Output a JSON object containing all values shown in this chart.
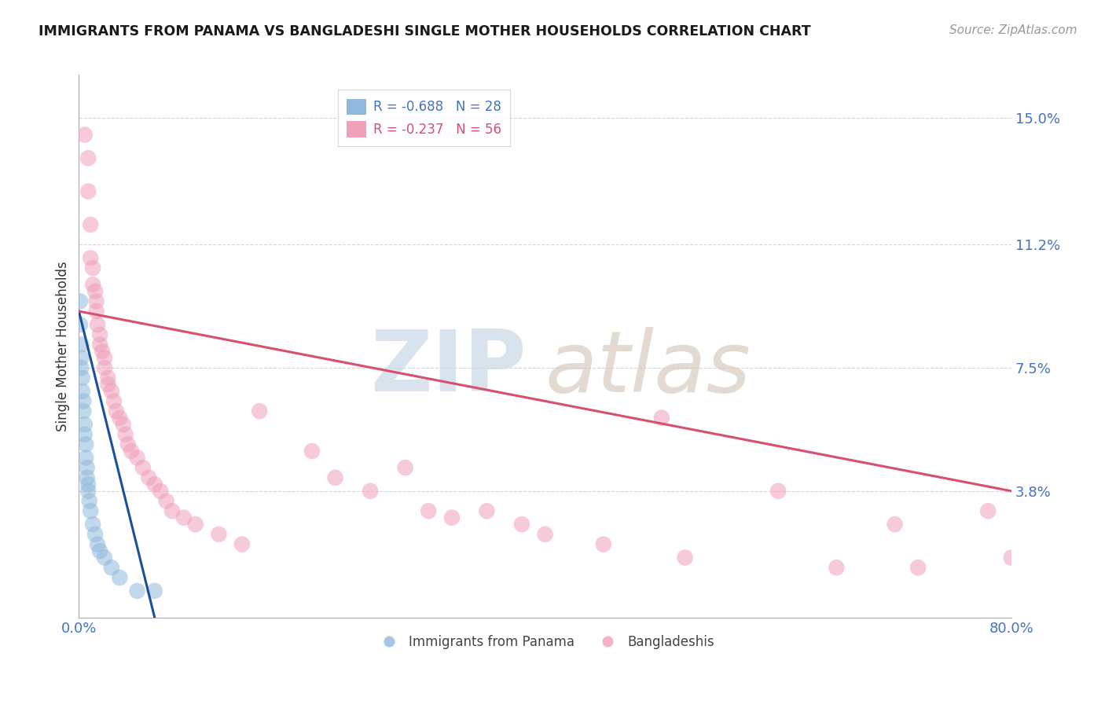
{
  "title": "IMMIGRANTS FROM PANAMA VS BANGLADESHI SINGLE MOTHER HOUSEHOLDS CORRELATION CHART",
  "source": "Source: ZipAtlas.com",
  "ylabel": "Single Mother Households",
  "ytick_labels": [
    "3.8%",
    "7.5%",
    "11.2%",
    "15.0%"
  ],
  "ytick_values": [
    0.038,
    0.075,
    0.112,
    0.15
  ],
  "xlim": [
    0.0,
    0.8
  ],
  "ylim": [
    0.0,
    0.163
  ],
  "legend_entries": [
    {
      "label": "R = -0.688   N = 28",
      "color": "#a8c8e8"
    },
    {
      "label": "R = -0.237   N = 56",
      "color": "#f4a0b8"
    }
  ],
  "legend_bottom": [
    "Immigrants from Panama",
    "Bangladeshis"
  ],
  "blue_color": "#90b8dc",
  "pink_color": "#f0a0b8",
  "blue_line_color": "#1a4f9c",
  "pink_line_color": "#d85070",
  "panama_points": [
    [
      0.001,
      0.095
    ],
    [
      0.001,
      0.088
    ],
    [
      0.002,
      0.082
    ],
    [
      0.002,
      0.078
    ],
    [
      0.002,
      0.075
    ],
    [
      0.003,
      0.072
    ],
    [
      0.003,
      0.068
    ],
    [
      0.004,
      0.065
    ],
    [
      0.004,
      0.062
    ],
    [
      0.005,
      0.058
    ],
    [
      0.005,
      0.055
    ],
    [
      0.006,
      0.052
    ],
    [
      0.006,
      0.048
    ],
    [
      0.007,
      0.045
    ],
    [
      0.007,
      0.042
    ],
    [
      0.008,
      0.04
    ],
    [
      0.008,
      0.038
    ],
    [
      0.009,
      0.035
    ],
    [
      0.01,
      0.032
    ],
    [
      0.012,
      0.028
    ],
    [
      0.014,
      0.025
    ],
    [
      0.016,
      0.022
    ],
    [
      0.018,
      0.02
    ],
    [
      0.022,
      0.018
    ],
    [
      0.028,
      0.015
    ],
    [
      0.035,
      0.012
    ],
    [
      0.05,
      0.008
    ],
    [
      0.065,
      0.008
    ]
  ],
  "bangladeshi_points": [
    [
      0.005,
      0.145
    ],
    [
      0.008,
      0.138
    ],
    [
      0.008,
      0.128
    ],
    [
      0.01,
      0.118
    ],
    [
      0.01,
      0.108
    ],
    [
      0.012,
      0.105
    ],
    [
      0.012,
      0.1
    ],
    [
      0.014,
      0.098
    ],
    [
      0.015,
      0.095
    ],
    [
      0.015,
      0.092
    ],
    [
      0.016,
      0.088
    ],
    [
      0.018,
      0.085
    ],
    [
      0.018,
      0.082
    ],
    [
      0.02,
      0.08
    ],
    [
      0.022,
      0.078
    ],
    [
      0.022,
      0.075
    ],
    [
      0.025,
      0.072
    ],
    [
      0.025,
      0.07
    ],
    [
      0.028,
      0.068
    ],
    [
      0.03,
      0.065
    ],
    [
      0.032,
      0.062
    ],
    [
      0.035,
      0.06
    ],
    [
      0.038,
      0.058
    ],
    [
      0.04,
      0.055
    ],
    [
      0.042,
      0.052
    ],
    [
      0.045,
      0.05
    ],
    [
      0.05,
      0.048
    ],
    [
      0.055,
      0.045
    ],
    [
      0.06,
      0.042
    ],
    [
      0.065,
      0.04
    ],
    [
      0.07,
      0.038
    ],
    [
      0.075,
      0.035
    ],
    [
      0.08,
      0.032
    ],
    [
      0.09,
      0.03
    ],
    [
      0.1,
      0.028
    ],
    [
      0.12,
      0.025
    ],
    [
      0.14,
      0.022
    ],
    [
      0.155,
      0.062
    ],
    [
      0.2,
      0.05
    ],
    [
      0.22,
      0.042
    ],
    [
      0.25,
      0.038
    ],
    [
      0.28,
      0.045
    ],
    [
      0.3,
      0.032
    ],
    [
      0.32,
      0.03
    ],
    [
      0.35,
      0.032
    ],
    [
      0.38,
      0.028
    ],
    [
      0.4,
      0.025
    ],
    [
      0.45,
      0.022
    ],
    [
      0.5,
      0.06
    ],
    [
      0.52,
      0.018
    ],
    [
      0.6,
      0.038
    ],
    [
      0.65,
      0.015
    ],
    [
      0.7,
      0.028
    ],
    [
      0.72,
      0.015
    ],
    [
      0.78,
      0.032
    ],
    [
      0.8,
      0.018
    ]
  ],
  "blue_line": [
    [
      0.0,
      0.092
    ],
    [
      0.065,
      0.0
    ]
  ],
  "pink_line": [
    [
      0.0,
      0.092
    ],
    [
      0.8,
      0.038
    ]
  ],
  "background_color": "#ffffff",
  "grid_color": "#cccccc"
}
